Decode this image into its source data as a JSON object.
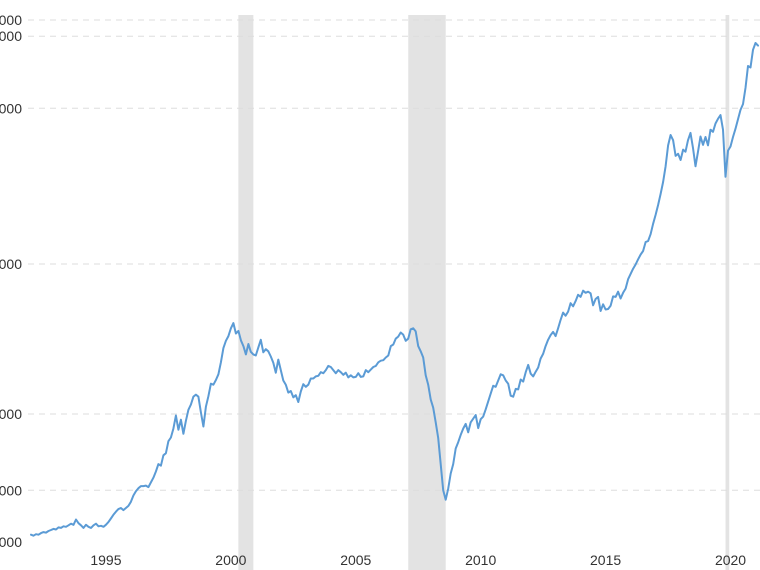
{
  "chart_data": {
    "type": "line",
    "title": "",
    "xlabel": "",
    "ylabel": "",
    "x_axis": {
      "min": 1992.0,
      "max": 2021.1,
      "ticks": [
        {
          "value": 1995,
          "label": "1995"
        },
        {
          "value": 2000,
          "label": "2000"
        },
        {
          "value": 2005,
          "label": "2005"
        },
        {
          "value": 2010,
          "label": "2010"
        },
        {
          "value": 2015,
          "label": "2015"
        },
        {
          "value": 2020,
          "label": "2020"
        }
      ]
    },
    "y_axis": {
      "min": 1,
      "max": 1000,
      "ticks": [
        {
          "value": 1,
          "label": "000"
        },
        {
          "value": 100,
          "label": "000"
        },
        {
          "value": 246,
          "label": "000"
        },
        {
          "value": 533,
          "label": "000"
        },
        {
          "value": 831,
          "label": "000"
        },
        {
          "value": 969,
          "label": "000"
        },
        {
          "value": 1000,
          "label": "000"
        }
      ]
    },
    "grid": true,
    "legend": "none",
    "recession_bands": [
      {
        "start": 2000.3,
        "end": 2000.9
      },
      {
        "start": 2007.1,
        "end": 2008.6
      },
      {
        "start": 2019.8,
        "end": 2019.95
      }
    ],
    "series": [
      {
        "color": "#5b9bd5",
        "points": [
          [
            1992.0,
            15
          ],
          [
            1992.1,
            13
          ],
          [
            1992.2,
            16
          ],
          [
            1992.3,
            15
          ],
          [
            1992.4,
            18
          ],
          [
            1992.5,
            20
          ],
          [
            1992.6,
            19
          ],
          [
            1992.7,
            22
          ],
          [
            1992.8,
            24
          ],
          [
            1992.9,
            26
          ],
          [
            1993.0,
            25
          ],
          [
            1993.1,
            29
          ],
          [
            1993.2,
            28
          ],
          [
            1993.3,
            31
          ],
          [
            1993.4,
            30
          ],
          [
            1993.5,
            33
          ],
          [
            1993.6,
            36
          ],
          [
            1993.7,
            34
          ],
          [
            1993.8,
            44
          ],
          [
            1993.9,
            37
          ],
          [
            1994.0,
            33
          ],
          [
            1994.1,
            28
          ],
          [
            1994.2,
            34
          ],
          [
            1994.3,
            30
          ],
          [
            1994.4,
            28
          ],
          [
            1994.5,
            33
          ],
          [
            1994.6,
            36
          ],
          [
            1994.7,
            31
          ],
          [
            1994.8,
            32
          ],
          [
            1994.9,
            30
          ],
          [
            1995.0,
            34
          ],
          [
            1995.1,
            39
          ],
          [
            1995.2,
            46
          ],
          [
            1995.3,
            53
          ],
          [
            1995.4,
            59
          ],
          [
            1995.5,
            64
          ],
          [
            1995.6,
            66
          ],
          [
            1995.7,
            62
          ],
          [
            1995.8,
            66
          ],
          [
            1995.9,
            70
          ],
          [
            1996.0,
            78
          ],
          [
            1996.1,
            90
          ],
          [
            1996.2,
            98
          ],
          [
            1996.3,
            104
          ],
          [
            1996.4,
            108
          ],
          [
            1996.5,
            108
          ],
          [
            1996.6,
            109
          ],
          [
            1996.7,
            106
          ],
          [
            1996.8,
            115
          ],
          [
            1996.9,
            124
          ],
          [
            1997.0,
            136
          ],
          [
            1997.1,
            150
          ],
          [
            1997.2,
            147
          ],
          [
            1997.3,
            167
          ],
          [
            1997.4,
            171
          ],
          [
            1997.5,
            194
          ],
          [
            1997.6,
            201
          ],
          [
            1997.7,
            218
          ],
          [
            1997.8,
            243
          ],
          [
            1997.9,
            216
          ],
          [
            1998.0,
            235
          ],
          [
            1998.1,
            208
          ],
          [
            1998.2,
            233
          ],
          [
            1998.3,
            254
          ],
          [
            1998.4,
            264
          ],
          [
            1998.5,
            279
          ],
          [
            1998.6,
            283
          ],
          [
            1998.7,
            279
          ],
          [
            1998.8,
            249
          ],
          [
            1998.9,
            222
          ],
          [
            1999.0,
            260
          ],
          [
            1999.1,
            280
          ],
          [
            1999.2,
            304
          ],
          [
            1999.3,
            302
          ],
          [
            1999.4,
            311
          ],
          [
            1999.5,
            322
          ],
          [
            1999.6,
            345
          ],
          [
            1999.7,
            372
          ],
          [
            1999.8,
            386
          ],
          [
            1999.9,
            395
          ],
          [
            2000.0,
            410
          ],
          [
            2000.1,
            420
          ],
          [
            2000.2,
            400
          ],
          [
            2000.3,
            405
          ],
          [
            2000.4,
            387
          ],
          [
            2000.5,
            376
          ],
          [
            2000.6,
            360
          ],
          [
            2000.7,
            380
          ],
          [
            2000.8,
            365
          ],
          [
            2000.9,
            360
          ],
          [
            2001.0,
            358
          ],
          [
            2001.1,
            373
          ],
          [
            2001.2,
            388
          ],
          [
            2001.3,
            364
          ],
          [
            2001.4,
            370
          ],
          [
            2001.5,
            366
          ],
          [
            2001.6,
            356
          ],
          [
            2001.7,
            344
          ],
          [
            2001.8,
            325
          ],
          [
            2001.9,
            350
          ],
          [
            2002.0,
            330
          ],
          [
            2002.1,
            310
          ],
          [
            2002.2,
            302
          ],
          [
            2002.3,
            287
          ],
          [
            2002.4,
            290
          ],
          [
            2002.5,
            278
          ],
          [
            2002.6,
            282
          ],
          [
            2002.7,
            269
          ],
          [
            2002.8,
            289
          ],
          [
            2002.9,
            303
          ],
          [
            2003.0,
            298
          ],
          [
            2003.1,
            302
          ],
          [
            2003.2,
            314
          ],
          [
            2003.3,
            314
          ],
          [
            2003.4,
            318
          ],
          [
            2003.5,
            319
          ],
          [
            2003.6,
            326
          ],
          [
            2003.7,
            324
          ],
          [
            2003.8,
            330
          ],
          [
            2003.9,
            338
          ],
          [
            2004.0,
            336
          ],
          [
            2004.1,
            330
          ],
          [
            2004.2,
            324
          ],
          [
            2004.3,
            330
          ],
          [
            2004.4,
            326
          ],
          [
            2004.5,
            321
          ],
          [
            2004.6,
            325
          ],
          [
            2004.7,
            316
          ],
          [
            2004.8,
            320
          ],
          [
            2004.9,
            316
          ],
          [
            2005.0,
            317
          ],
          [
            2005.1,
            324
          ],
          [
            2005.2,
            317
          ],
          [
            2005.3,
            318
          ],
          [
            2005.4,
            330
          ],
          [
            2005.5,
            326
          ],
          [
            2005.6,
            331
          ],
          [
            2005.7,
            336
          ],
          [
            2005.8,
            338
          ],
          [
            2005.9,
            345
          ],
          [
            2006.0,
            348
          ],
          [
            2006.1,
            349
          ],
          [
            2006.2,
            354
          ],
          [
            2006.3,
            358
          ],
          [
            2006.4,
            376
          ],
          [
            2006.5,
            379
          ],
          [
            2006.6,
            390
          ],
          [
            2006.7,
            394
          ],
          [
            2006.8,
            402
          ],
          [
            2006.9,
            398
          ],
          [
            2007.0,
            386
          ],
          [
            2007.1,
            390
          ],
          [
            2007.2,
            408
          ],
          [
            2007.3,
            410
          ],
          [
            2007.4,
            404
          ],
          [
            2007.5,
            376
          ],
          [
            2007.6,
            366
          ],
          [
            2007.7,
            354
          ],
          [
            2007.8,
            320
          ],
          [
            2007.9,
            302
          ],
          [
            2008.0,
            274
          ],
          [
            2008.1,
            258
          ],
          [
            2008.2,
            230
          ],
          [
            2008.3,
            200
          ],
          [
            2008.4,
            150
          ],
          [
            2008.5,
            100
          ],
          [
            2008.6,
            82
          ],
          [
            2008.7,
            103
          ],
          [
            2008.8,
            132
          ],
          [
            2008.9,
            150
          ],
          [
            2009.0,
            180
          ],
          [
            2009.1,
            192
          ],
          [
            2009.2,
            206
          ],
          [
            2009.3,
            218
          ],
          [
            2009.4,
            227
          ],
          [
            2009.5,
            211
          ],
          [
            2009.6,
            230
          ],
          [
            2009.7,
            237
          ],
          [
            2009.8,
            244
          ],
          [
            2009.9,
            219
          ],
          [
            2010.0,
            236
          ],
          [
            2010.1,
            241
          ],
          [
            2010.2,
            255
          ],
          [
            2010.3,
            270
          ],
          [
            2010.4,
            285
          ],
          [
            2010.5,
            300
          ],
          [
            2010.6,
            298
          ],
          [
            2010.7,
            310
          ],
          [
            2010.8,
            322
          ],
          [
            2010.9,
            320
          ],
          [
            2011.0,
            310
          ],
          [
            2011.1,
            304
          ],
          [
            2011.2,
            281
          ],
          [
            2011.3,
            279
          ],
          [
            2011.4,
            294
          ],
          [
            2011.5,
            293
          ],
          [
            2011.6,
            312
          ],
          [
            2011.7,
            308
          ],
          [
            2011.8,
            326
          ],
          [
            2011.9,
            340
          ],
          [
            2012.0,
            323
          ],
          [
            2012.1,
            318
          ],
          [
            2012.2,
            327
          ],
          [
            2012.3,
            335
          ],
          [
            2012.4,
            352
          ],
          [
            2012.5,
            361
          ],
          [
            2012.6,
            376
          ],
          [
            2012.7,
            388
          ],
          [
            2012.8,
            397
          ],
          [
            2012.9,
            403
          ],
          [
            2013.0,
            395
          ],
          [
            2013.1,
            410
          ],
          [
            2013.2,
            426
          ],
          [
            2013.3,
            440
          ],
          [
            2013.4,
            434
          ],
          [
            2013.5,
            442
          ],
          [
            2013.6,
            458
          ],
          [
            2013.7,
            452
          ],
          [
            2013.8,
            462
          ],
          [
            2013.9,
            474
          ],
          [
            2014.0,
            470
          ],
          [
            2014.1,
            482
          ],
          [
            2014.2,
            478
          ],
          [
            2014.3,
            480
          ],
          [
            2014.4,
            477
          ],
          [
            2014.5,
            454
          ],
          [
            2014.6,
            466
          ],
          [
            2014.7,
            470
          ],
          [
            2014.8,
            443
          ],
          [
            2014.9,
            456
          ],
          [
            2015.0,
            446
          ],
          [
            2015.1,
            447
          ],
          [
            2015.2,
            453
          ],
          [
            2015.3,
            471
          ],
          [
            2015.4,
            470
          ],
          [
            2015.5,
            480
          ],
          [
            2015.6,
            467
          ],
          [
            2015.7,
            478
          ],
          [
            2015.8,
            486
          ],
          [
            2015.9,
            504
          ],
          [
            2016.0,
            514
          ],
          [
            2016.1,
            524
          ],
          [
            2016.2,
            532
          ],
          [
            2016.3,
            542
          ],
          [
            2016.4,
            551
          ],
          [
            2016.5,
            558
          ],
          [
            2016.6,
            575
          ],
          [
            2016.7,
            577
          ],
          [
            2016.8,
            590
          ],
          [
            2016.9,
            610
          ],
          [
            2017.0,
            627
          ],
          [
            2017.1,
            646
          ],
          [
            2017.2,
            667
          ],
          [
            2017.3,
            690
          ],
          [
            2017.4,
            720
          ],
          [
            2017.5,
            760
          ],
          [
            2017.6,
            780
          ],
          [
            2017.7,
            770
          ],
          [
            2017.8,
            740
          ],
          [
            2017.9,
            744
          ],
          [
            2018.0,
            732
          ],
          [
            2018.1,
            752
          ],
          [
            2018.2,
            748
          ],
          [
            2018.3,
            770
          ],
          [
            2018.4,
            784
          ],
          [
            2018.5,
            755
          ],
          [
            2018.6,
            720
          ],
          [
            2018.7,
            748
          ],
          [
            2018.8,
            777
          ],
          [
            2018.9,
            761
          ],
          [
            2019.0,
            776
          ],
          [
            2019.1,
            760
          ],
          [
            2019.2,
            790
          ],
          [
            2019.3,
            786
          ],
          [
            2019.4,
            802
          ],
          [
            2019.5,
            811
          ],
          [
            2019.6,
            818
          ],
          [
            2019.7,
            790
          ],
          [
            2019.8,
            700
          ],
          [
            2019.9,
            750
          ],
          [
            2020.0,
            758
          ],
          [
            2020.1,
            776
          ],
          [
            2020.2,
            792
          ],
          [
            2020.3,
            810
          ],
          [
            2020.4,
            828
          ],
          [
            2020.5,
            839
          ],
          [
            2020.6,
            870
          ],
          [
            2020.7,
            912
          ],
          [
            2020.8,
            909
          ],
          [
            2020.9,
            943
          ],
          [
            2021.0,
            956
          ],
          [
            2021.1,
            951
          ]
        ]
      }
    ]
  }
}
